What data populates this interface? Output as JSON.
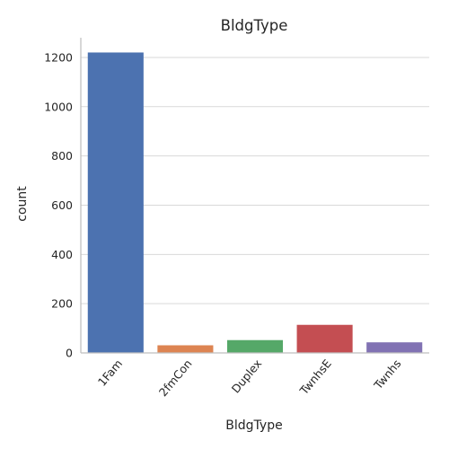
{
  "chart_data": {
    "type": "bar",
    "title": "BldgType",
    "xlabel": "BldgType",
    "ylabel": "count",
    "categories": [
      "1Fam",
      "2fmCon",
      "Duplex",
      "TwnhsE",
      "Twnhs"
    ],
    "values": [
      1220,
      31,
      52,
      114,
      43
    ],
    "colors": [
      "#4c72b0",
      "#dd8452",
      "#55a868",
      "#c44e52",
      "#8172b3"
    ],
    "ylim": [
      0,
      1280
    ],
    "yticks": [
      0,
      200,
      400,
      600,
      800,
      1000,
      1200
    ],
    "grid": true
  }
}
